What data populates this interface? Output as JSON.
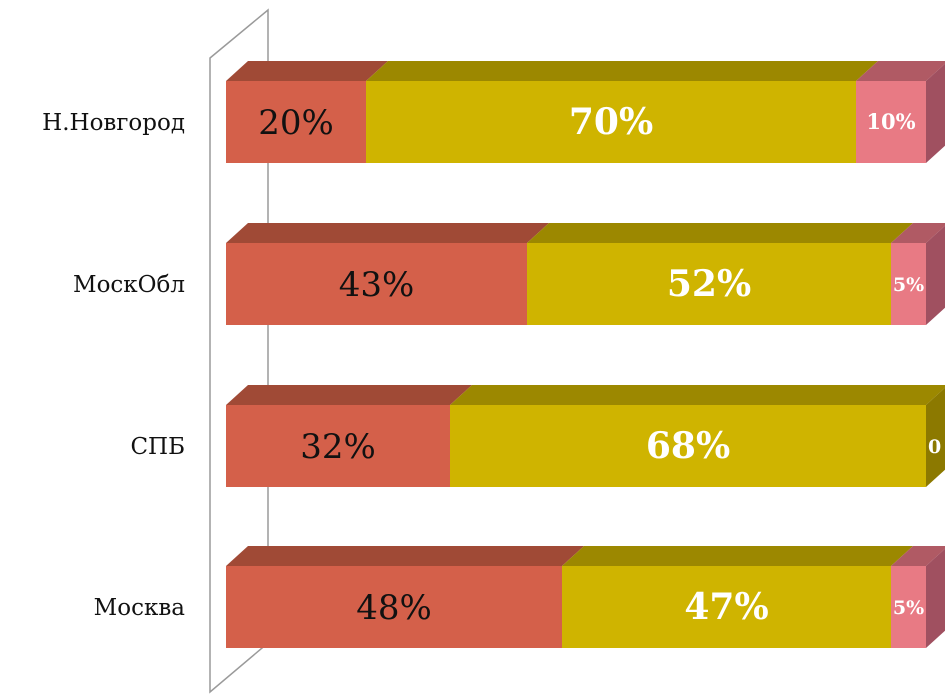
{
  "chart_data": {
    "type": "bar",
    "orientation": "horizontal",
    "stacked": true,
    "percent_stacked": true,
    "three_d": true,
    "categories": [
      "Н.Новгород",
      "МоскОбл",
      "СПБ",
      "Москва"
    ],
    "series": [
      {
        "values": [
          20,
          43,
          32,
          48
        ],
        "labels": [
          "20%",
          "43%",
          "32%",
          "48%"
        ],
        "color": "#d4604a"
      },
      {
        "values": [
          70,
          52,
          68,
          47
        ],
        "labels": [
          "70%",
          "52%",
          "68%",
          "47%"
        ],
        "color": "#cfb400"
      },
      {
        "values": [
          10,
          5,
          0,
          5
        ],
        "labels": [
          "10%",
          "5%",
          "0",
          "5%"
        ],
        "color": "#e87a84"
      }
    ],
    "title": "",
    "xlabel": "",
    "ylabel": "",
    "xlim": [
      0,
      100
    ],
    "grid": false,
    "legend": "none"
  },
  "colors": {
    "series_top": [
      "#a04a36",
      "#9c8800",
      "#b05a64"
    ],
    "series_side": [
      "#a04a36",
      "#8c7900",
      "#a05060"
    ],
    "wall_stroke": "#9a9a9a"
  }
}
